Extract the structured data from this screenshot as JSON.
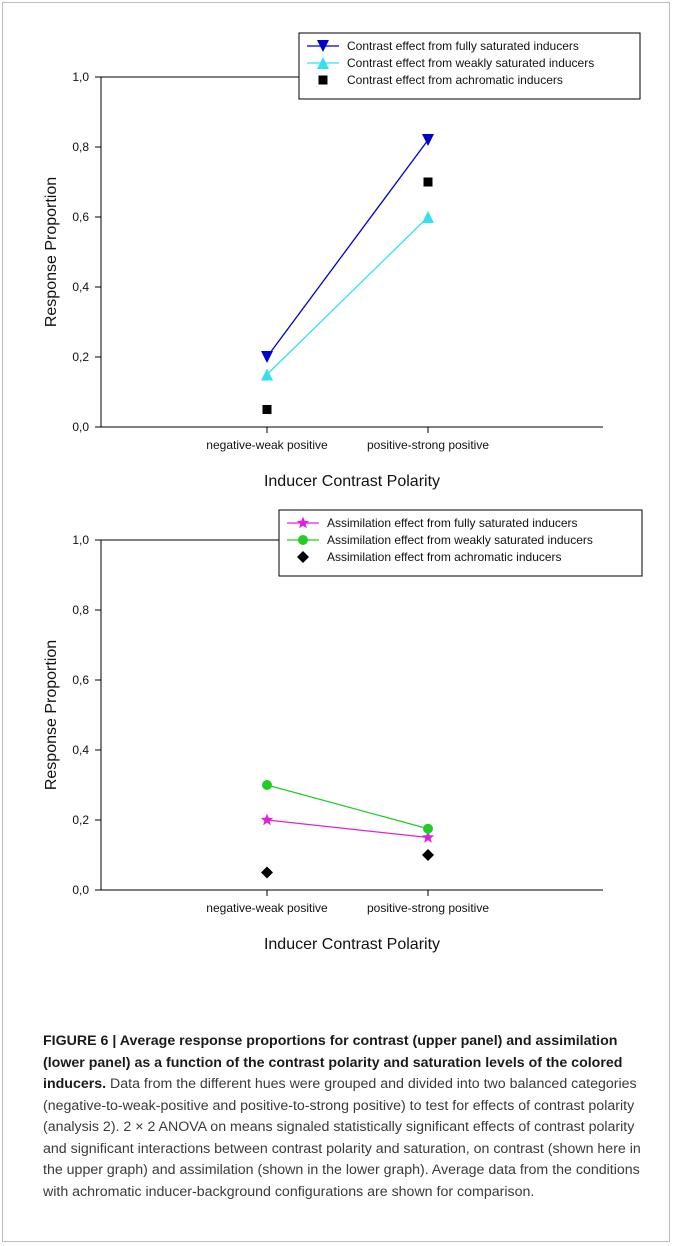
{
  "caption": {
    "figure_label": "FIGURE 6 | Average response proportions for contrast (upper panel) and assimilation (lower panel) as a function of the contrast polarity and saturation levels of the colored inducers.",
    "body": " Data from the different hues were grouped and divided into two balanced categories (negative-to-weak-positive and positive-to-strong positive) to test for effects of contrast polarity (analysis 2). 2 × 2 ANOVA on means signaled statistically significant effects of contrast polarity and significant interactions between contrast polarity and saturation, on contrast (shown here in the upper graph) and assimilation (shown in the lower graph). Average data from the conditions with achromatic inducer-background configurations are shown for comparison."
  },
  "chart_data": [
    {
      "type": "line",
      "panel": "upper",
      "categories": [
        "negative-weak positive",
        "positive-strong positive"
      ],
      "xlabel": "Inducer Contrast Polarity",
      "ylabel": "Response Proportion",
      "ylim": [
        0,
        1
      ],
      "yticks": [
        "0,0",
        "0,2",
        "0,4",
        "0,6",
        "0,8",
        "1,0"
      ],
      "grid": false,
      "legend_position": "top-right",
      "series": [
        {
          "name": "Contrast effect from fully saturated inducers",
          "values": [
            0.2,
            0.82
          ],
          "color": "#0000cc",
          "marker": "triangle-down",
          "line": true
        },
        {
          "name": "Contrast effect from weakly saturated inducers",
          "values": [
            0.15,
            0.6
          ],
          "color": "#33e0f0",
          "marker": "triangle-up",
          "line": true
        },
        {
          "name": "Contrast effect from achromatic inducers",
          "values": [
            0.05,
            0.7
          ],
          "color": "#000000",
          "marker": "square",
          "line": false
        }
      ]
    },
    {
      "type": "line",
      "panel": "lower",
      "categories": [
        "negative-weak positive",
        "positive-strong positive"
      ],
      "xlabel": "Inducer Contrast Polarity",
      "ylabel": "Response Proportion",
      "ylim": [
        0,
        1
      ],
      "yticks": [
        "0,0",
        "0,2",
        "0,4",
        "0,6",
        "0,8",
        "1,0"
      ],
      "grid": false,
      "legend_position": "top-right",
      "series": [
        {
          "name": "Assimilation effect from fully saturated inducers",
          "values": [
            0.2,
            0.15
          ],
          "color": "#e020e0",
          "marker": "star",
          "line": true
        },
        {
          "name": "Assimilation effect from weakly saturated inducers",
          "values": [
            0.3,
            0.175
          ],
          "color": "#22cc22",
          "marker": "circle",
          "line": true
        },
        {
          "name": "Assimilation effect from achromatic inducers",
          "values": [
            0.05,
            0.1
          ],
          "color": "#000000",
          "marker": "diamond",
          "line": false
        }
      ]
    }
  ]
}
